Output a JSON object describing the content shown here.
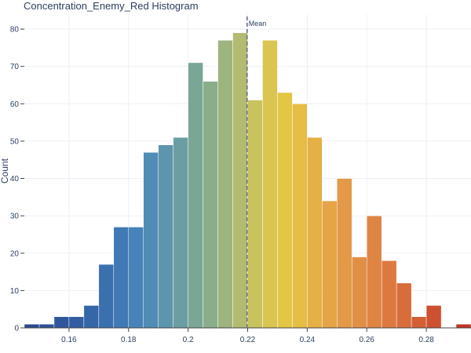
{
  "chart_data": {
    "type": "bar",
    "title": "Concentration_Enemy_Red Histogram",
    "xlabel": "",
    "ylabel": "Count",
    "xlim": [
      0.145,
      0.295
    ],
    "ylim": [
      0,
      84
    ],
    "bin_width": 0.005,
    "bins_start": [
      0.145,
      0.15,
      0.155,
      0.16,
      0.165,
      0.17,
      0.175,
      0.18,
      0.185,
      0.19,
      0.195,
      0.2,
      0.205,
      0.21,
      0.215,
      0.22,
      0.225,
      0.23,
      0.235,
      0.24,
      0.245,
      0.25,
      0.255,
      0.26,
      0.265,
      0.27,
      0.275,
      0.28,
      0.285,
      0.29
    ],
    "values": [
      1,
      1,
      3,
      3,
      6,
      17,
      27,
      27,
      47,
      49,
      51,
      71,
      66,
      77,
      79,
      61,
      77,
      63,
      60,
      51,
      34,
      40,
      19,
      30,
      18,
      12,
      3,
      6,
      0,
      1
    ],
    "colors": [
      "#2b4a8f",
      "#2d4f95",
      "#30569c",
      "#325da2",
      "#3566a8",
      "#3a70ae",
      "#4079b4",
      "#4783b8",
      "#508cb5",
      "#5c95ac",
      "#6b9ea2",
      "#7aa696",
      "#8aae8a",
      "#9db47e",
      "#b2bb6f",
      "#c8c25f",
      "#d9c54f",
      "#e3c645",
      "#e6bd45",
      "#e5b046",
      "#e4a547",
      "#e39947",
      "#e28f46",
      "#e08444",
      "#dd7940",
      "#d96c3b",
      "#d35f35",
      "#cd5030",
      "#c6412b",
      "#c23327"
    ],
    "x_ticks": [
      0.16,
      0.18,
      0.2,
      0.22,
      0.24,
      0.26,
      0.28
    ],
    "x_tick_labels": [
      "0.16",
      "0.18",
      "0.2",
      "0.22",
      "0.24",
      "0.26",
      "0.28"
    ],
    "y_ticks": [
      0,
      10,
      20,
      30,
      40,
      50,
      60,
      70,
      80
    ],
    "y_tick_labels": [
      "0",
      "10",
      "20",
      "30",
      "40",
      "50",
      "60",
      "70",
      "80"
    ],
    "mean": 0.2198,
    "mean_label": "Mean",
    "grid": true,
    "legend": "none"
  }
}
